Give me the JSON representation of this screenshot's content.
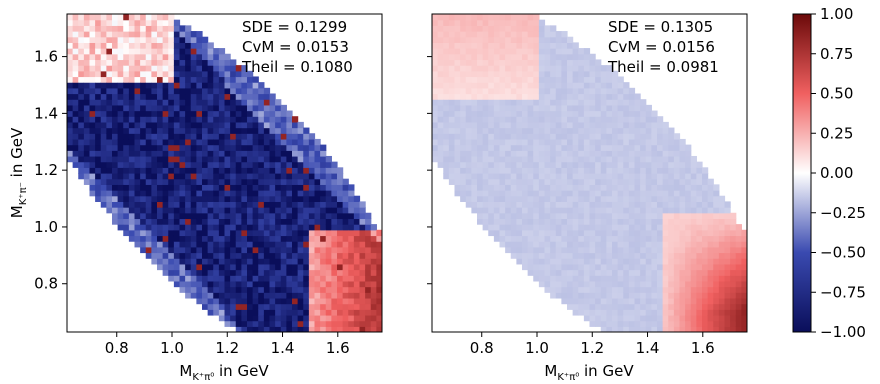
{
  "chart_data": {
    "type": "heatmap",
    "colormap": "seismic-like diverging (blue negative, white zero, red positive)",
    "colors": {
      "negative": "#1f2a8c",
      "zero": "#ffffff",
      "positive": "#e31a1c",
      "dark_negative": "#0d1366",
      "dark_positive": "#7a0a0a"
    },
    "xlim": [
      0.62,
      1.76
    ],
    "ylim": [
      0.63,
      1.75
    ],
    "xticks": [
      "0.8",
      "1.0",
      "1.2",
      "1.4",
      "1.6"
    ],
    "yticks": [
      "0.8",
      "1.0",
      "1.2",
      "1.4",
      "1.6"
    ],
    "xlabel_main": "M",
    "xlabel_sub": "K⁺π⁰",
    "xlabel_unit": " in GeV",
    "ylabel_main": "M",
    "ylabel_sub": "K⁺π⁻",
    "ylabel_unit": " in GeV",
    "panels": [
      {
        "stats": [
          "SDE = 0.1299",
          "CvM = 0.0153",
          "Theil = 0.1080"
        ],
        "description": "noisy residuals, mostly negative (blue) in centre, positive (red) at lower right and upper left"
      },
      {
        "stats": [
          "SDE = 0.1305",
          "CvM = 0.0156",
          "Theil = 0.0981"
        ],
        "description": "smooth residuals, light blue in centre, red at lower right, light red at upper left"
      }
    ],
    "colorbar": {
      "range": [
        -1.0,
        1.0
      ],
      "ticks": [
        "1.00",
        "0.75",
        "0.50",
        "0.25",
        "0.00",
        "−0.25",
        "−0.50",
        "−0.75",
        "−1.00"
      ]
    }
  }
}
